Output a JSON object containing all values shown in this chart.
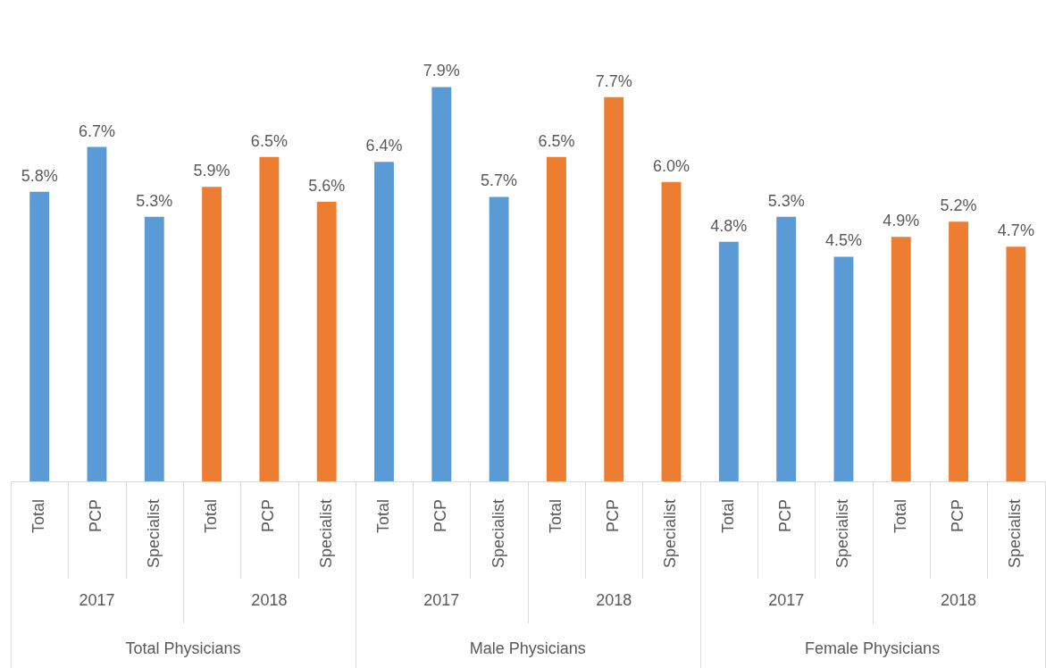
{
  "chart_data": {
    "type": "bar",
    "categories": [
      "Total",
      "PCP",
      "Specialist",
      "Total",
      "PCP",
      "Specialist",
      "Total",
      "PCP",
      "Specialist",
      "Total",
      "PCP",
      "Specialist",
      "Total",
      "PCP",
      "Specialist",
      "Total",
      "PCP",
      "Specialist"
    ],
    "values": [
      5.8,
      6.7,
      5.3,
      5.9,
      6.5,
      5.6,
      6.4,
      7.9,
      5.7,
      6.5,
      7.7,
      6.0,
      4.8,
      5.3,
      4.5,
      4.9,
      5.2,
      4.7
    ],
    "value_labels": [
      "5.8%",
      "6.7%",
      "5.3%",
      "5.9%",
      "6.5%",
      "5.6%",
      "6.4%",
      "7.9%",
      "5.7%",
      "6.5%",
      "7.7%",
      "6.0%",
      "4.8%",
      "5.3%",
      "4.5%",
      "4.9%",
      "5.2%",
      "4.7%"
    ],
    "colors": [
      "#5b9bd5",
      "#5b9bd5",
      "#5b9bd5",
      "#ed7d31",
      "#ed7d31",
      "#ed7d31",
      "#5b9bd5",
      "#5b9bd5",
      "#5b9bd5",
      "#ed7d31",
      "#ed7d31",
      "#ed7d31",
      "#5b9bd5",
      "#5b9bd5",
      "#5b9bd5",
      "#ed7d31",
      "#ed7d31",
      "#ed7d31"
    ],
    "tick_labels": "x",
    "annotations": [
      "2017",
      "2018",
      "2017",
      "2018",
      "2017",
      "2018",
      "Total Physicians",
      "Male Physicians",
      "Female Physicians"
    ]
  }
}
